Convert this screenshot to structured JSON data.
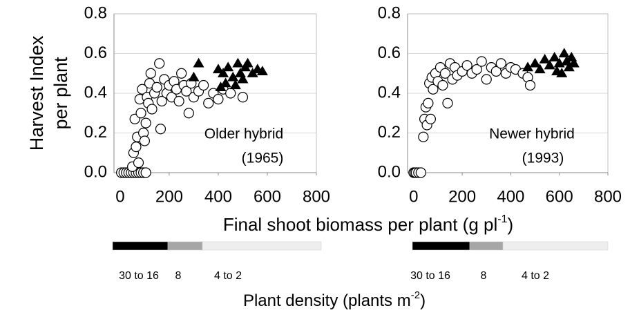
{
  "chart_data": [
    {
      "type": "scatter",
      "annotation": [
        "Older hybrid",
        "(1965)"
      ],
      "xlim": [
        -25,
        800
      ],
      "xticks": [
        0,
        200,
        400,
        600,
        800
      ],
      "ylim": [
        0,
        0.8
      ],
      "yticks": [
        {
          "value": 0,
          "label": "0.0"
        },
        0.2,
        0.4,
        0.6,
        0.8
      ],
      "grid": true,
      "series": [
        {
          "marker": "circle",
          "color": "#ffffff",
          "x": [
            5,
            15,
            25,
            35,
            45,
            55,
            65,
            75,
            85,
            95,
            105,
            50,
            55,
            60,
            65,
            70,
            75,
            80,
            85,
            90,
            95,
            100,
            105,
            110,
            115,
            120,
            125,
            130,
            140,
            150,
            160,
            165,
            170,
            180,
            190,
            200,
            210,
            220,
            230,
            240,
            250,
            260,
            270,
            280,
            290,
            300,
            320,
            340,
            360,
            380,
            400,
            420,
            450,
            500
          ],
          "values": [
            0,
            0,
            0,
            0,
            0,
            0,
            0,
            0,
            0,
            0,
            0,
            0.03,
            0.1,
            0.27,
            0.13,
            0.18,
            0.05,
            0.37,
            0.3,
            0.42,
            0.2,
            0.16,
            0.25,
            0.38,
            0.35,
            0.45,
            0.5,
            0.32,
            0.4,
            0.43,
            0.55,
            0.22,
            0.36,
            0.47,
            0.4,
            0.44,
            0.38,
            0.46,
            0.42,
            0.36,
            0.5,
            0.44,
            0.41,
            0.3,
            0.45,
            0.38,
            0.41,
            0.44,
            0.35,
            0.4,
            0.37,
            0.42,
            0.4,
            0.38
          ]
        },
        {
          "marker": "triangle",
          "color": "#000000",
          "x": [
            300,
            320,
            400,
            410,
            420,
            430,
            440,
            460,
            470,
            480,
            490,
            500,
            510,
            520,
            540,
            560,
            580
          ],
          "values": [
            0.48,
            0.55,
            0.52,
            0.43,
            0.5,
            0.45,
            0.53,
            0.48,
            0.44,
            0.55,
            0.5,
            0.47,
            0.53,
            0.55,
            0.5,
            0.52,
            0.51
          ]
        }
      ]
    },
    {
      "type": "scatter",
      "annotation": [
        "Newer hybrid",
        "(1993)"
      ],
      "xlim": [
        -25,
        800
      ],
      "xticks": [
        0,
        200,
        400,
        600,
        800
      ],
      "ylim": [
        0,
        0.8
      ],
      "yticks": [
        {
          "value": 0,
          "label": "0.0"
        },
        0.2,
        0.4,
        0.6,
        0.8
      ],
      "grid": true,
      "series": [
        {
          "marker": "circle",
          "color": "#ffffff",
          "x": [
            0,
            5,
            10,
            20,
            30,
            40,
            45,
            50,
            55,
            60,
            65,
            70,
            75,
            80,
            90,
            100,
            110,
            120,
            130,
            140,
            150,
            160,
            170,
            180,
            200,
            220,
            240,
            260,
            280,
            300,
            320,
            340,
            360,
            380,
            400,
            420,
            450,
            470,
            480
          ],
          "values": [
            0,
            0,
            0,
            0,
            0,
            0.18,
            0.27,
            0.33,
            0.24,
            0.35,
            0.45,
            0.27,
            0.48,
            0.42,
            0.5,
            0.46,
            0.53,
            0.44,
            0.5,
            0.35,
            0.55,
            0.47,
            0.53,
            0.49,
            0.51,
            0.54,
            0.5,
            0.52,
            0.56,
            0.47,
            0.53,
            0.51,
            0.55,
            0.5,
            0.53,
            0.52,
            0.5,
            0.48,
            0.44
          ]
        },
        {
          "marker": "triangle",
          "color": "#000000",
          "x": [
            470,
            500,
            520,
            540,
            560,
            580,
            590,
            600,
            610,
            620,
            630,
            640,
            650,
            660
          ],
          "values": [
            0.53,
            0.55,
            0.52,
            0.57,
            0.54,
            0.58,
            0.51,
            0.55,
            0.5,
            0.6,
            0.56,
            0.53,
            0.58,
            0.55
          ]
        }
      ]
    }
  ],
  "y_label": [
    "Harvest Index",
    "per plant"
  ],
  "x_label": {
    "text": "Final shoot biomass per plant (g pl",
    "sup": "-1",
    "tail": ")"
  },
  "density": {
    "labels": [
      "30 to 16",
      "8",
      "4 to 2"
    ],
    "colors": [
      "#000000",
      "#a6a6a6",
      "#eeeeee"
    ],
    "label": {
      "text": "Plant density (plants m",
      "sup": "-2",
      "tail": ")"
    }
  }
}
